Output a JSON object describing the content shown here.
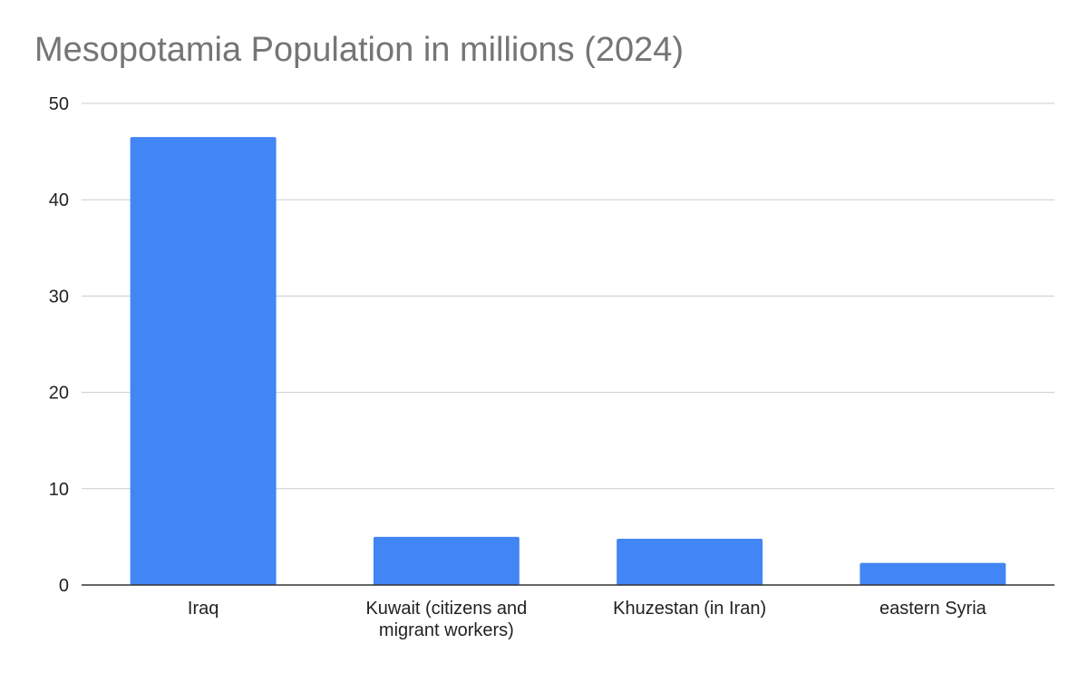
{
  "chart_data": {
    "type": "bar",
    "title": "Mesopotamia Population in millions (2024)",
    "xlabel": "",
    "ylabel": "",
    "categories": [
      [
        "Iraq"
      ],
      [
        "Kuwait (citizens and",
        "migrant workers)"
      ],
      [
        "Khuzestan (in Iran)"
      ],
      [
        "eastern Syria"
      ]
    ],
    "values": [
      46.5,
      5.0,
      4.8,
      2.3
    ],
    "ylim": [
      0,
      50
    ],
    "yticks": [
      0,
      10,
      20,
      30,
      40,
      50
    ],
    "grid": true,
    "legend": "none",
    "colors": {
      "bar": "#4285f4",
      "grid": "#cccccc",
      "axis": "#333333",
      "title": "#757575"
    }
  }
}
